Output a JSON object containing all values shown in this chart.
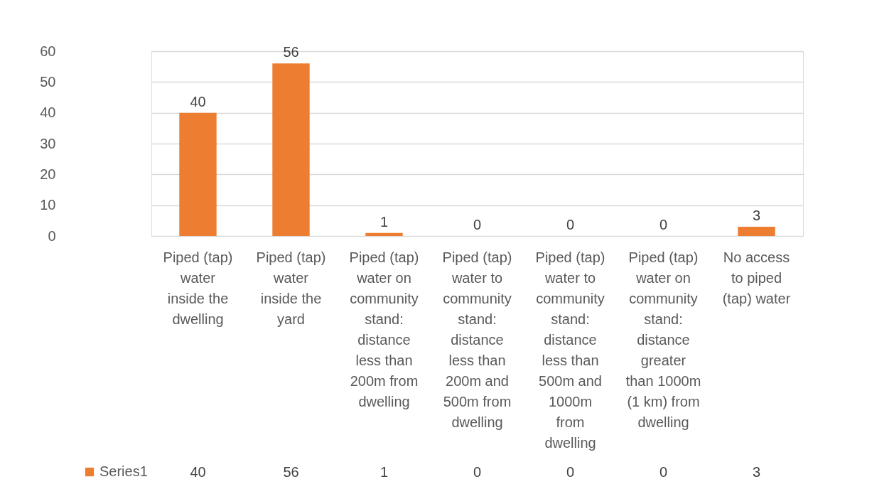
{
  "chart_data": {
    "type": "bar",
    "categories": [
      "Piped (tap) water inside the dwelling",
      "Piped (tap) water inside the yard",
      "Piped (tap) water on community stand: distance less than 200m from dwelling",
      "Piped (tap) water to community stand: distance less than 200m and 500m from dwelling",
      "Piped (tap) water to community stand: distance less than 500m and 1000m from dwelling",
      "Piped (tap) water on community stand: distance greater than 1000m (1 km) from dwelling",
      "No access to piped (tap) water"
    ],
    "series": [
      {
        "name": "Series1",
        "color": "#ed7d31",
        "values": [
          40,
          56,
          1,
          0,
          0,
          0,
          3
        ]
      }
    ],
    "ylim": [
      0,
      60
    ],
    "yticks": [
      0,
      10,
      20,
      30,
      40,
      50,
      60
    ],
    "grid": "y",
    "legend": "bottom",
    "data_labels": true,
    "annotations": [
      "40",
      "56",
      "1",
      "0",
      "0",
      "0",
      "3"
    ]
  }
}
